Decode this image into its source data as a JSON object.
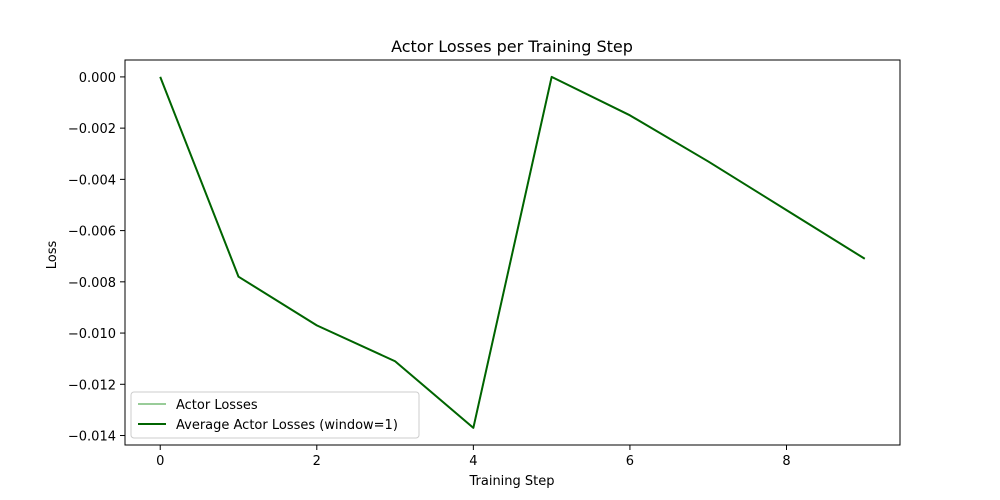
{
  "chart_data": {
    "type": "line",
    "title": "Actor Losses per Training Step",
    "xlabel": "Training Step",
    "ylabel": "Loss",
    "xlim": [
      -0.45,
      9.45
    ],
    "ylim": [
      -0.01437,
      0.00066
    ],
    "x_ticks": [
      0,
      2,
      4,
      6,
      8
    ],
    "y_ticks": [
      0.0,
      -0.002,
      -0.004,
      -0.006,
      -0.008,
      -0.01,
      -0.012,
      -0.014
    ],
    "x_tick_labels": [
      "0",
      "2",
      "4",
      "6",
      "8"
    ],
    "y_tick_labels": [
      "0.000",
      "−0.002",
      "−0.004",
      "−0.006",
      "−0.008",
      "−0.010",
      "−0.012",
      "−0.014"
    ],
    "grid": false,
    "legend_position": "lower-left",
    "x": [
      0,
      1,
      2,
      3,
      4,
      5,
      6,
      7,
      8,
      9
    ],
    "series": [
      {
        "name": "Actor Losses",
        "color": "#99cc99",
        "values": [
          0.0,
          -0.0078,
          -0.0097,
          -0.0111,
          -0.0137,
          0.0,
          -0.0015,
          -0.0033,
          -0.0052,
          -0.0071
        ]
      },
      {
        "name": "Average Actor Losses (window=1)",
        "color": "#006400",
        "values": [
          0.0,
          -0.0078,
          -0.0097,
          -0.0111,
          -0.0137,
          0.0,
          -0.0015,
          -0.0033,
          -0.0052,
          -0.0071
        ]
      }
    ]
  }
}
